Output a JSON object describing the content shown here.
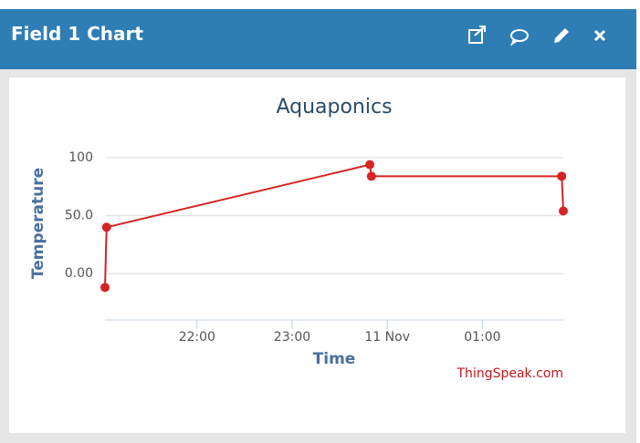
{
  "header": {
    "title": "Field 1 Chart"
  },
  "chart_data": {
    "type": "line",
    "title": "Aquaponics",
    "xlabel": "Time",
    "ylabel": "Temperature",
    "credit": "ThingSpeak.com",
    "x": [
      "21:02",
      "21:03",
      "23:49",
      "23:50",
      "01:50",
      "01:51"
    ],
    "series": [
      {
        "name": "Temperature",
        "color": "#d62424",
        "values": [
          -12,
          40,
          94,
          84,
          84,
          54
        ]
      }
    ],
    "xlim": [
      "21:02",
      "01:51"
    ],
    "xticks": [
      "22:00",
      "23:00",
      {
        "value": "00:00",
        "label": "11 Nov"
      },
      "01:00"
    ],
    "ylim": [
      -40,
      100
    ],
    "yticks": [
      {
        "value": 0,
        "label": "0.00"
      },
      {
        "value": 50,
        "label": "50.0"
      },
      100
    ],
    "grid": true
  }
}
